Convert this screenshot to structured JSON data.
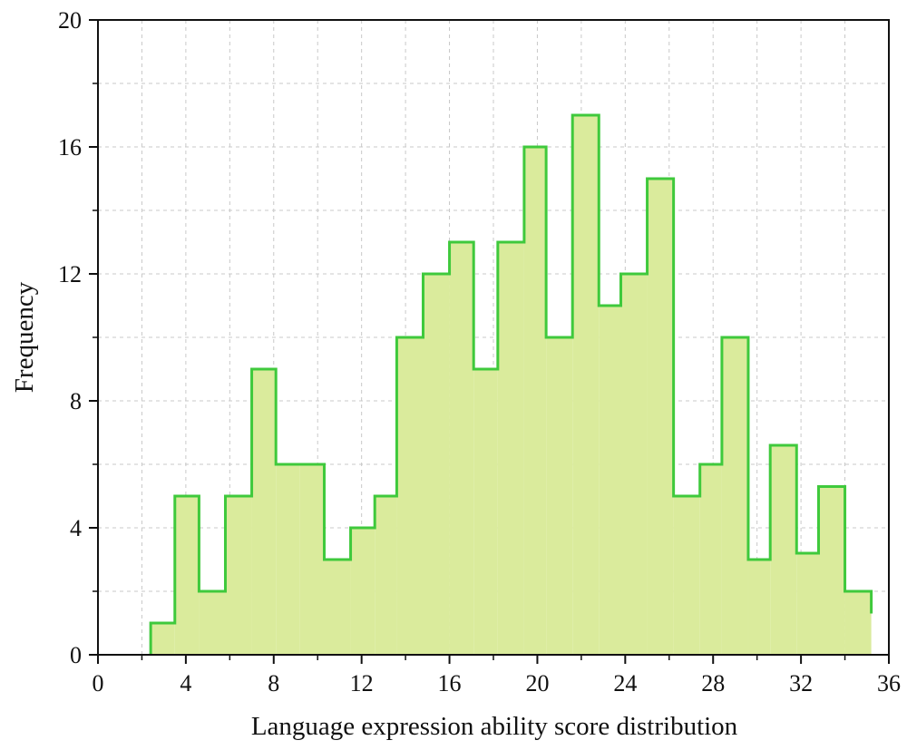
{
  "chart_data": {
    "type": "histogram",
    "xlabel": "Language expression ability score distribution",
    "ylabel": "Frequency",
    "xlim": [
      0,
      36
    ],
    "ylim": [
      0,
      20
    ],
    "x_ticks": [
      0,
      4,
      8,
      12,
      16,
      20,
      24,
      28,
      32,
      36
    ],
    "y_ticks": [
      0,
      4,
      8,
      12,
      16,
      20
    ],
    "grid": true,
    "bin_edges": [
      2.4,
      3.5,
      4.6,
      5.8,
      7.0,
      8.1,
      9.2,
      10.3,
      11.5,
      12.6,
      13.6,
      14.8,
      16.0,
      17.1,
      18.2,
      19.4,
      20.4,
      21.6,
      22.8,
      23.8,
      25.0,
      26.2,
      27.4,
      28.4,
      29.6,
      30.6,
      31.8,
      32.8,
      34.0,
      35.2
    ],
    "values": [
      1,
      5,
      2,
      5,
      9,
      6,
      6,
      3,
      4,
      5,
      10,
      12,
      13,
      9,
      13,
      16,
      10,
      17,
      11,
      12,
      15,
      5,
      6,
      10,
      3,
      6.6,
      3.2,
      5.3,
      2,
      1.3
    ],
    "colors": {
      "fill": "#daeb9c",
      "stroke": "#3fc93c",
      "grid": "#c8c8c8",
      "axis": "#111111"
    }
  }
}
